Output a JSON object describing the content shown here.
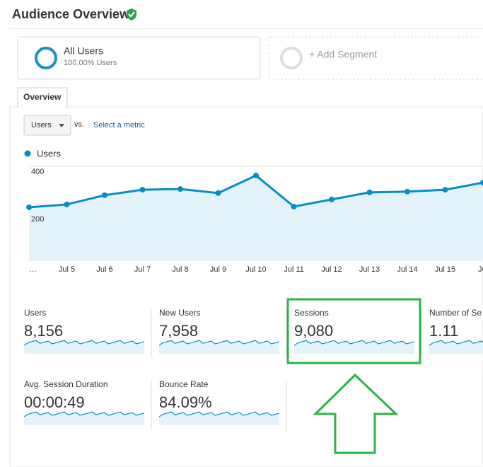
{
  "header": {
    "title": "Audience Overview"
  },
  "segments": [
    {
      "name": "All Users",
      "detail": "100.00% Users"
    },
    {
      "name": "+ Add Segment"
    }
  ],
  "tab": "Overview",
  "controls": {
    "metric": "Users",
    "vs": "vs.",
    "select": "Select a metric"
  },
  "chart_data": {
    "type": "line",
    "categories": [
      "…",
      "Jul 5",
      "Jul 6",
      "Jul 7",
      "Jul 8",
      "Jul 9",
      "Jul 10",
      "Jul 11",
      "Jul 12",
      "Jul 13",
      "Jul 14",
      "Jul 15",
      "Jul"
    ],
    "series": [
      {
        "name": "Users",
        "color": "#058dc7",
        "values": [
          227,
          239,
          278,
          301,
          304,
          287,
          361,
          230,
          260,
          290,
          293,
          301,
          331
        ]
      }
    ],
    "ylim": [
      0,
      400
    ],
    "yticks": [
      200,
      400
    ],
    "grid": true
  },
  "metrics": [
    {
      "label": "Users",
      "value": "8,156"
    },
    {
      "label": "New Users",
      "value": "7,958"
    },
    {
      "label": "Sessions",
      "value": "9,080"
    },
    {
      "label": "Number of Se",
      "value": "1.11"
    },
    {
      "label": "Avg. Session Duration",
      "value": "00:00:49"
    },
    {
      "label": "Bounce Rate",
      "value": "84.09%"
    }
  ]
}
